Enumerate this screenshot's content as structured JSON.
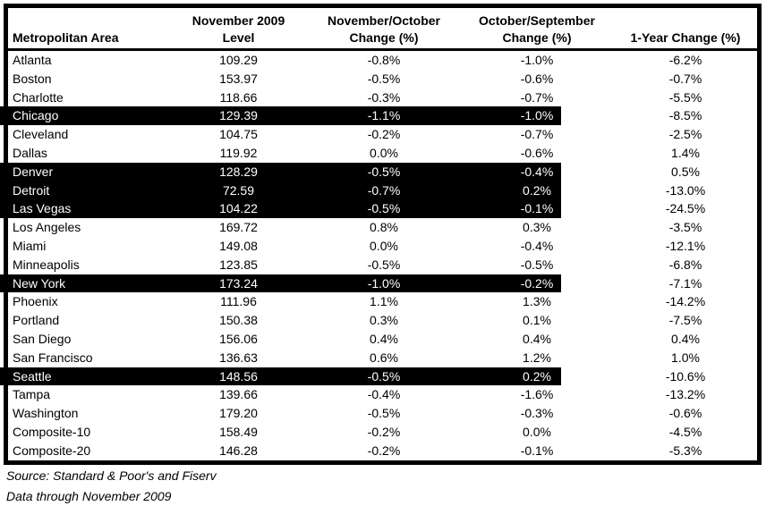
{
  "table": {
    "headers": {
      "col1_line2": "Metropolitan Area",
      "col2_line1": "November 2009",
      "col2_line2": "Level",
      "col3_line1": "November/October",
      "col3_line2": "Change (%)",
      "col4_line1": "October/September",
      "col4_line2": "Change (%)",
      "col5_line2": "1-Year Change (%)"
    },
    "rows": [
      {
        "area": "Atlanta",
        "level": "109.29",
        "nov_oct": "-0.8%",
        "oct_sep": "-1.0%",
        "one_year": "-6.2%",
        "highlighted": false
      },
      {
        "area": "Boston",
        "level": "153.97",
        "nov_oct": "-0.5%",
        "oct_sep": "-0.6%",
        "one_year": "-0.7%",
        "highlighted": false
      },
      {
        "area": "Charlotte",
        "level": "118.66",
        "nov_oct": "-0.3%",
        "oct_sep": "-0.7%",
        "one_year": "-5.5%",
        "highlighted": false
      },
      {
        "area": "Chicago",
        "level": "129.39",
        "nov_oct": "-1.1%",
        "oct_sep": "-1.0%",
        "one_year": "-8.5%",
        "highlighted": true
      },
      {
        "area": "Cleveland",
        "level": "104.75",
        "nov_oct": "-0.2%",
        "oct_sep": "-0.7%",
        "one_year": "-2.5%",
        "highlighted": false
      },
      {
        "area": "Dallas",
        "level": "119.92",
        "nov_oct": "0.0%",
        "oct_sep": "-0.6%",
        "one_year": "1.4%",
        "highlighted": false
      },
      {
        "area": "Denver",
        "level": "128.29",
        "nov_oct": "-0.5%",
        "oct_sep": "-0.4%",
        "one_year": "0.5%",
        "highlighted": true
      },
      {
        "area": "Detroit",
        "level": "72.59",
        "nov_oct": "-0.7%",
        "oct_sep": "0.2%",
        "one_year": "-13.0%",
        "highlighted": true
      },
      {
        "area": "Las Vegas",
        "level": "104.22",
        "nov_oct": "-0.5%",
        "oct_sep": "-0.1%",
        "one_year": "-24.5%",
        "highlighted": true
      },
      {
        "area": "Los Angeles",
        "level": "169.72",
        "nov_oct": "0.8%",
        "oct_sep": "0.3%",
        "one_year": "-3.5%",
        "highlighted": false
      },
      {
        "area": "Miami",
        "level": "149.08",
        "nov_oct": "0.0%",
        "oct_sep": "-0.4%",
        "one_year": "-12.1%",
        "highlighted": false
      },
      {
        "area": "Minneapolis",
        "level": "123.85",
        "nov_oct": "-0.5%",
        "oct_sep": "-0.5%",
        "one_year": "-6.8%",
        "highlighted": false
      },
      {
        "area": "New York",
        "level": "173.24",
        "nov_oct": "-1.0%",
        "oct_sep": "-0.2%",
        "one_year": "-7.1%",
        "highlighted": true
      },
      {
        "area": "Phoenix",
        "level": "111.96",
        "nov_oct": "1.1%",
        "oct_sep": "1.3%",
        "one_year": "-14.2%",
        "highlighted": false
      },
      {
        "area": "Portland",
        "level": "150.38",
        "nov_oct": "0.3%",
        "oct_sep": "0.1%",
        "one_year": "-7.5%",
        "highlighted": false
      },
      {
        "area": "San Diego",
        "level": "156.06",
        "nov_oct": "0.4%",
        "oct_sep": "0.4%",
        "one_year": "0.4%",
        "highlighted": false
      },
      {
        "area": "San Francisco",
        "level": "136.63",
        "nov_oct": "0.6%",
        "oct_sep": "1.2%",
        "one_year": "1.0%",
        "highlighted": false
      },
      {
        "area": "Seattle",
        "level": "148.56",
        "nov_oct": "-0.5%",
        "oct_sep": "0.2%",
        "one_year": "-10.6%",
        "highlighted": true
      },
      {
        "area": "Tampa",
        "level": "139.66",
        "nov_oct": "-0.4%",
        "oct_sep": "-1.6%",
        "one_year": "-13.2%",
        "highlighted": false
      },
      {
        "area": "Washington",
        "level": "179.20",
        "nov_oct": "-0.5%",
        "oct_sep": "-0.3%",
        "one_year": "-0.6%",
        "highlighted": false
      },
      {
        "area": "Composite-10",
        "level": "158.49",
        "nov_oct": "-0.2%",
        "oct_sep": "0.0%",
        "one_year": "-4.5%",
        "highlighted": false
      },
      {
        "area": "Composite-20",
        "level": "146.28",
        "nov_oct": "-0.2%",
        "oct_sep": "-0.1%",
        "one_year": "-5.3%",
        "highlighted": false
      }
    ]
  },
  "footer": {
    "source": "Source: Standard & Poor's and Fiserv",
    "data_through": "Data through November 2009"
  },
  "colors": {
    "background": "#ffffff",
    "text": "#000000",
    "border": "#000000",
    "highlight_bg": "#000000",
    "highlight_text": "#ffffff"
  }
}
